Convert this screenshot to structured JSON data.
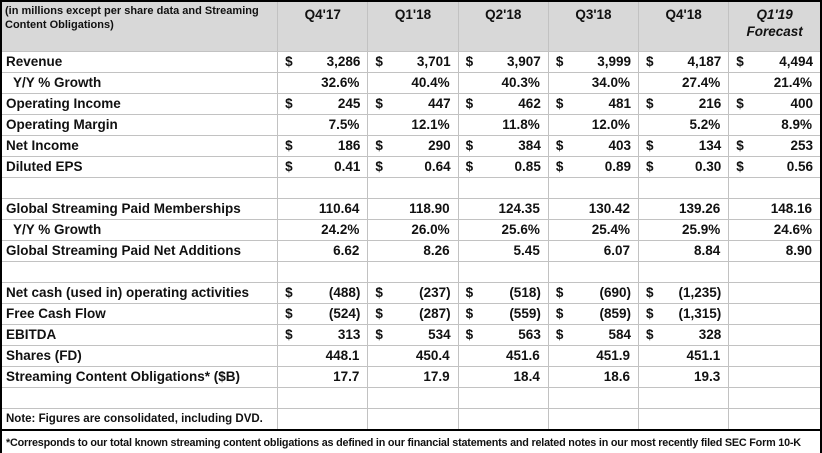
{
  "table": {
    "currency_symbol": "$",
    "corner_label": "(in millions except per share data and Streaming Content Obligations)",
    "columns": [
      {
        "label": "Q4'17"
      },
      {
        "label": "Q1'18"
      },
      {
        "label": "Q2'18"
      },
      {
        "label": "Q3'18"
      },
      {
        "label": "Q4'18"
      },
      {
        "label": "Q1'19",
        "sublabel": "Forecast"
      }
    ],
    "rows": [
      {
        "type": "money",
        "label": "Revenue",
        "values": [
          "3,286",
          "3,701",
          "3,907",
          "3,999",
          "4,187",
          "4,494"
        ]
      },
      {
        "type": "percent",
        "label": "Y/Y % Growth",
        "indent": true,
        "values": [
          "32.6%",
          "40.4%",
          "40.3%",
          "34.0%",
          "27.4%",
          "21.4%"
        ]
      },
      {
        "type": "money",
        "label": "Operating Income",
        "values": [
          "245",
          "447",
          "462",
          "481",
          "216",
          "400"
        ]
      },
      {
        "type": "percent",
        "label": "Operating Margin",
        "values": [
          "7.5%",
          "12.1%",
          "11.8%",
          "12.0%",
          "5.2%",
          "8.9%"
        ]
      },
      {
        "type": "money",
        "label": "Net Income",
        "values": [
          "186",
          "290",
          "384",
          "403",
          "134",
          "253"
        ]
      },
      {
        "type": "money",
        "label": "Diluted EPS",
        "values": [
          "0.41",
          "0.64",
          "0.85",
          "0.89",
          "0.30",
          "0.56"
        ]
      },
      {
        "type": "blank"
      },
      {
        "type": "plain",
        "label": "Global Streaming Paid Memberships",
        "values": [
          "110.64",
          "118.90",
          "124.35",
          "130.42",
          "139.26",
          "148.16"
        ]
      },
      {
        "type": "percent",
        "label": "Y/Y % Growth",
        "indent": true,
        "values": [
          "24.2%",
          "26.0%",
          "25.6%",
          "25.4%",
          "25.9%",
          "24.6%"
        ]
      },
      {
        "type": "plain",
        "label": "Global Streaming Paid Net Additions",
        "values": [
          "6.62",
          "8.26",
          "5.45",
          "6.07",
          "8.84",
          "8.90"
        ]
      },
      {
        "type": "blank"
      },
      {
        "type": "money",
        "label": "Net cash (used in) operating activities",
        "values": [
          "(488)",
          "(237)",
          "(518)",
          "(690)",
          "(1,235)",
          ""
        ]
      },
      {
        "type": "money",
        "label": "Free Cash Flow",
        "values": [
          "(524)",
          "(287)",
          "(559)",
          "(859)",
          "(1,315)",
          ""
        ]
      },
      {
        "type": "money",
        "label": "EBITDA",
        "values": [
          "313",
          "534",
          "563",
          "584",
          "328",
          ""
        ]
      },
      {
        "type": "plain",
        "label": "Shares (FD)",
        "values": [
          "448.1",
          "450.4",
          "451.6",
          "451.9",
          "451.1",
          ""
        ]
      },
      {
        "type": "plain",
        "label": "Streaming Content Obligations* ($B)",
        "values": [
          "17.7",
          "17.9",
          "18.4",
          "18.6",
          "19.3",
          ""
        ]
      },
      {
        "type": "blank"
      },
      {
        "type": "note",
        "label": "Note: Figures are consolidated, including DVD."
      },
      {
        "type": "footnote",
        "label": "*Corresponds to our total known streaming content obligations as defined in our financial statements and related notes in our most recently filed SEC Form 10-K"
      }
    ]
  }
}
